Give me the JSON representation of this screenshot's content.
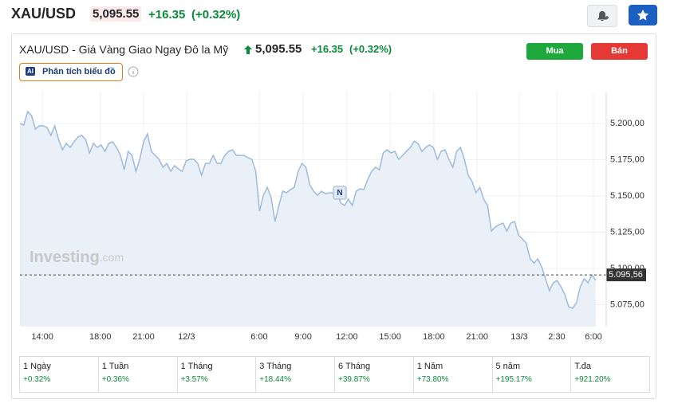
{
  "header": {
    "symbol": "XAU/USD",
    "price": "5,095.55",
    "change": "+16.35",
    "change_pct": "(+0.32%)"
  },
  "panel": {
    "title": "XAU/USD - Giá Vàng Giao Ngay Đô la Mỹ",
    "price": "5,095.55",
    "change": "+16.35",
    "change_pct": "(+0.32%)",
    "buy": "Mua",
    "sell": "Bán",
    "ai_badge": "AI",
    "analysis": "Phân tích biểu đồ",
    "watermark_brand": "Investing",
    "watermark_domain": ".com",
    "news_marker": "N"
  },
  "chart_data": {
    "type": "area",
    "color": "#9dbbdb",
    "fill": "#e9f0f7",
    "grid": true,
    "values": [
      5200.0,
      5198.9,
      5208.2,
      5205.5,
      5196.2,
      5198.4,
      5198.4,
      5197.3,
      5191.8,
      5198.4,
      5189.0,
      5181.9,
      5186.3,
      5183.5,
      5187.4,
      5190.7,
      5191.8,
      5189.0,
      5179.7,
      5186.3,
      5183.5,
      5185.2,
      5180.8,
      5186.3,
      5187.4,
      5183.5,
      5178.0,
      5168.1,
      5180.8,
      5178.0,
      5167.0,
      5175.3,
      5187.4,
      5192.9,
      5180.8,
      5178.0,
      5175.3,
      5169.8,
      5172.5,
      5167.0,
      5170.9,
      5168.7,
      5167.0,
      5174.2,
      5175.3,
      5175.3,
      5172.5,
      5164.3,
      5172.5,
      5172.5,
      5178.0,
      5172.5,
      5172.5,
      5178.0,
      5180.8,
      5181.9,
      5178.0,
      5178.0,
      5178.0,
      5176.4,
      5175.3,
      5167.0,
      5139.6,
      5150.5,
      5156.0,
      5148.9,
      5132.4,
      5143.4,
      5153.3,
      5152.2,
      5154.4,
      5156.0,
      5167.0,
      5172.5,
      5169.8,
      5157.7,
      5153.3,
      5150.5,
      5153.3,
      5151.6,
      5152.2,
      5152.2,
      5153.3,
      5145.1,
      5143.4,
      5147.8,
      5143.4,
      5153.3,
      5154.9,
      5154.4,
      5161.5,
      5167.0,
      5169.8,
      5168.1,
      5179.7,
      5181.9,
      5179.7,
      5180.8,
      5175.3,
      5178.0,
      5180.8,
      5183.5,
      5187.9,
      5186.3,
      5180.8,
      5183.5,
      5185.2,
      5183.5,
      5175.3,
      5180.8,
      5181.9,
      5175.3,
      5169.8,
      5180.8,
      5183.5,
      5175.3,
      5164.3,
      5159.9,
      5152.2,
      5156.0,
      5147.8,
      5143.4,
      5125.8,
      5128.6,
      5130.2,
      5131.3,
      5125.8,
      5131.3,
      5132.4,
      5123.1,
      5120.3,
      5117.6,
      5106.6,
      5103.8,
      5106.6,
      5101.1,
      5092.9,
      5084.6,
      5090.1,
      5091.7,
      5087.4,
      5081.9,
      5073.6,
      5072.5,
      5076.4,
      5087.4,
      5092.9,
      5090.1,
      5095.6,
      5091.7
    ],
    "xlim": [
      0,
      151.7
    ],
    "xticks": [
      {
        "value": 5.8,
        "label": "14:00"
      },
      {
        "value": 20.8,
        "label": "18:00"
      },
      {
        "value": 32.0,
        "label": "21:00"
      },
      {
        "value": 43.1,
        "label": "12/3"
      },
      {
        "value": 61.9,
        "label": "6:00"
      },
      {
        "value": 73.3,
        "label": "9:00"
      },
      {
        "value": 84.6,
        "label": "12:00"
      },
      {
        "value": 95.8,
        "label": "15:00"
      },
      {
        "value": 107.1,
        "label": "18:00"
      },
      {
        "value": 118.3,
        "label": "21:00"
      },
      {
        "value": 129.2,
        "label": "13/3"
      },
      {
        "value": 138.9,
        "label": "2:30"
      },
      {
        "value": 148.4,
        "label": "6:00"
      }
    ],
    "ylim": [
      5059.9,
      5222
    ],
    "yticks": [
      {
        "value": 5075,
        "label": "5.075,00"
      },
      {
        "value": 5100,
        "label": "5.100,00"
      },
      {
        "value": 5125,
        "label": "5.125,00"
      },
      {
        "value": 5150,
        "label": "5.150,00"
      },
      {
        "value": 5175,
        "label": "5.175,00"
      },
      {
        "value": 5200,
        "label": "5.200,00"
      }
    ],
    "last_price": {
      "value": 5095.56,
      "label": "5.095,56"
    }
  },
  "periods": [
    {
      "label": "1 Ngày",
      "change": "+0.32%"
    },
    {
      "label": "1 Tuần",
      "change": "+0.36%"
    },
    {
      "label": "1 Tháng",
      "change": "+3.57%"
    },
    {
      "label": "3 Tháng",
      "change": "+18.44%"
    },
    {
      "label": "6 Tháng",
      "change": "+39.87%"
    },
    {
      "label": "1 Năm",
      "change": "+73.80%"
    },
    {
      "label": "5 năm",
      "change": "+195.17%"
    },
    {
      "label": "T.đa",
      "change": "+921.20%"
    }
  ]
}
